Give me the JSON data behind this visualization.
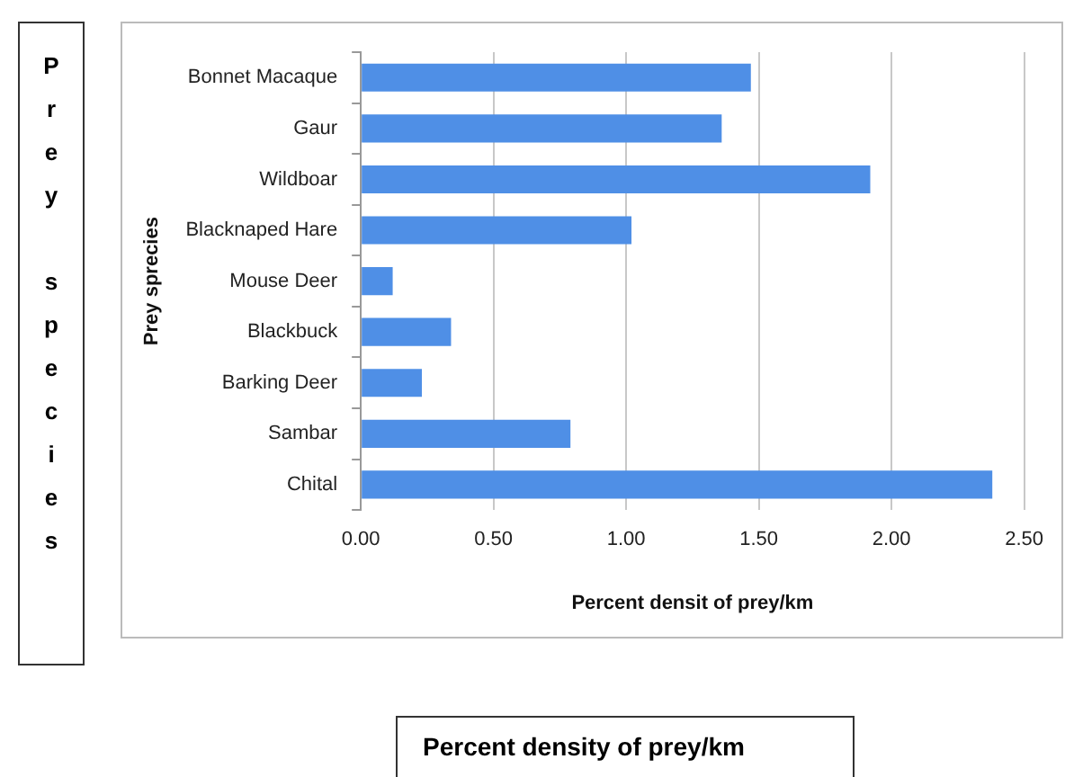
{
  "chart_data": {
    "type": "bar",
    "orientation": "horizontal",
    "xlabel": "Percent densit of prey/km",
    "ylabel": "Prey sprecies",
    "categories": [
      "Bonnet Macaque",
      "Gaur",
      "Wildboar",
      "Blacknaped Hare",
      "Mouse Deer",
      "Blackbuck",
      "Barking Deer",
      "Sambar",
      "Chital"
    ],
    "values": [
      1.47,
      1.36,
      1.92,
      1.02,
      0.12,
      0.34,
      0.23,
      0.79,
      2.38
    ],
    "color": "#4f8fe6",
    "xlim": [
      0,
      2.5
    ],
    "xticks": [
      {
        "value": 0,
        "label": "0.00"
      },
      {
        "value": 0.5,
        "label": "0.50"
      },
      {
        "value": 1,
        "label": "1.00"
      },
      {
        "value": 1.5,
        "label": "1.50"
      },
      {
        "value": 2,
        "label": "2.00"
      },
      {
        "value": 2.5,
        "label": "2.50"
      }
    ],
    "grid": "x",
    "legend": false,
    "annotations": [
      "Prey species",
      "Percent density of prey/km"
    ]
  }
}
